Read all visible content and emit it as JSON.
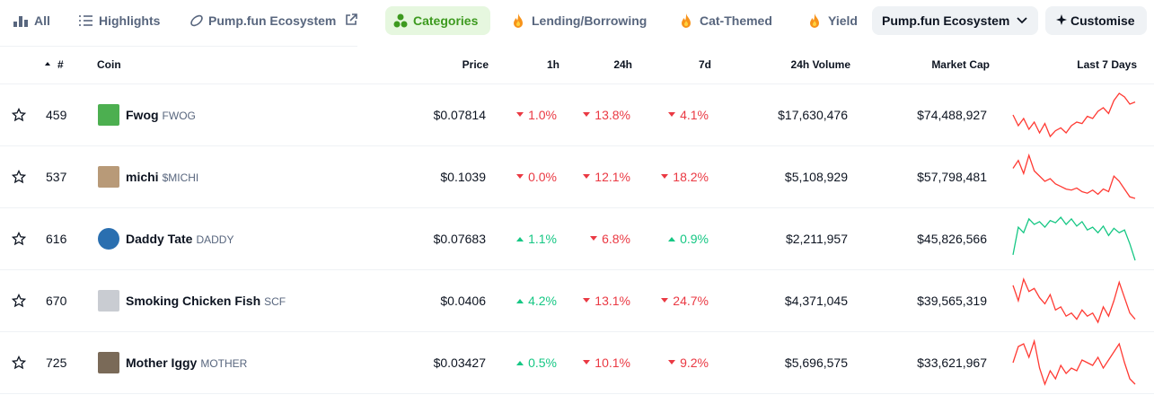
{
  "tabs": [
    {
      "label": "All",
      "active": false
    },
    {
      "label": "Highlights",
      "active": false
    },
    {
      "label": "Pump.fun Ecosystem",
      "active": false,
      "external": true
    },
    {
      "label": "Categories",
      "active": true
    },
    {
      "label": "Lending/Borrowing",
      "active": false,
      "fire": true
    },
    {
      "label": "Cat-Themed",
      "active": false,
      "fire": true
    },
    {
      "label": "Yield",
      "active": false,
      "fire": true
    }
  ],
  "dropdown": "Pump.fun Ecosystem",
  "customise": "Customise",
  "table": {
    "headers": [
      "#",
      "Coin",
      "Price",
      "1h",
      "24h",
      "7d",
      "24h Volume",
      "Market Cap",
      "Last 7 Days"
    ],
    "rows": [
      {
        "rank": "459",
        "name": "Fwog",
        "symbol": "FWOG",
        "price": "$0.07814",
        "h1": "1.0%",
        "h1_dir": "down",
        "h24": "13.8%",
        "h24_dir": "down",
        "d7": "4.1%",
        "d7_dir": "down",
        "volume": "$17,630,476",
        "mcap": "$74,488,927",
        "icon": "#4caf50",
        "spark_color": "#ff3a33",
        "sparkline": [
          60,
          45,
          55,
          40,
          50,
          35,
          48,
          30,
          38,
          42,
          35,
          45,
          50,
          48,
          58,
          55,
          65,
          70,
          62,
          80,
          90,
          85,
          75,
          78
        ]
      },
      {
        "rank": "537",
        "name": "michi",
        "symbol": "$MICHI",
        "price": "$0.1039",
        "h1": "0.0%",
        "h1_dir": "down",
        "h24": "12.1%",
        "h24_dir": "down",
        "d7": "18.2%",
        "d7_dir": "down",
        "volume": "$5,108,929",
        "mcap": "$57,798,481",
        "icon": "#b89a78",
        "spark_color": "#ff3a33",
        "sparkline": [
          70,
          85,
          60,
          95,
          65,
          55,
          45,
          50,
          40,
          35,
          30,
          28,
          32,
          25,
          22,
          28,
          20,
          30,
          25,
          55,
          45,
          30,
          15,
          12
        ]
      },
      {
        "rank": "616",
        "name": "Daddy Tate",
        "symbol": "DADDY",
        "price": "$0.07683",
        "h1": "1.1%",
        "h1_dir": "up",
        "h24": "6.8%",
        "h24_dir": "down",
        "d7": "0.9%",
        "d7_dir": "up",
        "volume": "$2,211,957",
        "mcap": "$45,826,566",
        "icon": "#2a6fb0",
        "spark_color": "#16c784",
        "sparkline": [
          20,
          70,
          60,
          85,
          75,
          80,
          70,
          82,
          78,
          88,
          75,
          85,
          72,
          80,
          65,
          70,
          60,
          72,
          55,
          68,
          60,
          65,
          40,
          10
        ]
      },
      {
        "rank": "670",
        "name": "Smoking Chicken Fish",
        "symbol": "SCF",
        "price": "$0.0406",
        "h1": "4.2%",
        "h1_dir": "up",
        "h24": "13.1%",
        "h24_dir": "down",
        "d7": "24.7%",
        "d7_dir": "down",
        "volume": "$4,371,045",
        "mcap": "$39,565,319",
        "icon": "#c9ccd2",
        "spark_color": "#ff3a33",
        "sparkline": [
          80,
          55,
          90,
          70,
          75,
          60,
          50,
          65,
          40,
          45,
          30,
          35,
          25,
          40,
          30,
          35,
          20,
          45,
          30,
          55,
          85,
          60,
          35,
          25
        ]
      },
      {
        "rank": "725",
        "name": "Mother Iggy",
        "symbol": "MOTHER",
        "price": "$0.03427",
        "h1": "0.5%",
        "h1_dir": "up",
        "h24": "10.1%",
        "h24_dir": "down",
        "d7": "9.2%",
        "d7_dir": "down",
        "volume": "$5,696,575",
        "mcap": "$33,621,967",
        "icon": "#7a6a58",
        "spark_color": "#ff3a33",
        "sparkline": [
          50,
          80,
          85,
          60,
          90,
          40,
          10,
          35,
          20,
          45,
          30,
          40,
          35,
          55,
          50,
          45,
          60,
          40,
          55,
          70,
          85,
          50,
          20,
          10
        ]
      }
    ]
  }
}
